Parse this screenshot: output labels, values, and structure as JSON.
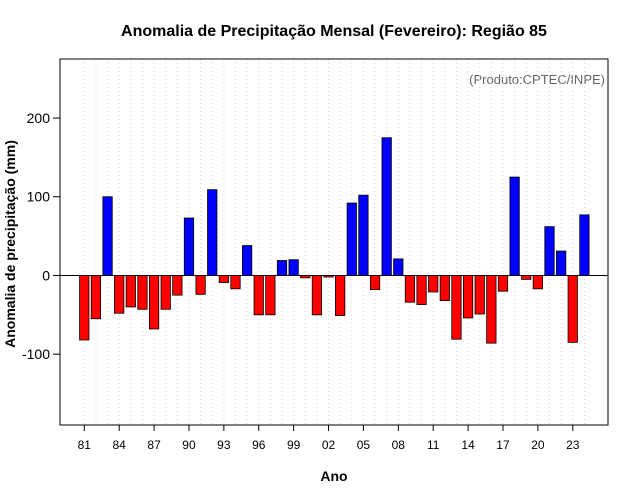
{
  "chart_data": {
    "type": "bar",
    "title": "Anomalia de Precipitação Mensal (Fevereiro): Região 85",
    "xlabel": "Ano",
    "ylabel": "Anomalia de precipitação (mm)",
    "annotation": "(Produto:CPTEC/INPE)",
    "ylim": [
      -190,
      275
    ],
    "yticks": [
      -100,
      0,
      100,
      200
    ],
    "grid": "vertical dotted",
    "x": [
      1981,
      1982,
      1983,
      1984,
      1985,
      1986,
      1987,
      1988,
      1989,
      1990,
      1991,
      1992,
      1993,
      1994,
      1995,
      1996,
      1997,
      1998,
      1999,
      2000,
      2001,
      2002,
      2003,
      2004,
      2005,
      2006,
      2007,
      2008,
      2009,
      2010,
      2011,
      2012,
      2013,
      2014,
      2015,
      2016,
      2017,
      2018,
      2019,
      2020,
      2021,
      2022,
      2023,
      2024
    ],
    "xtick_labels": [
      {
        "year": 1981,
        "label": "81"
      },
      {
        "year": 1984,
        "label": "84"
      },
      {
        "year": 1987,
        "label": "87"
      },
      {
        "year": 1990,
        "label": "90"
      },
      {
        "year": 1993,
        "label": "93"
      },
      {
        "year": 1996,
        "label": "96"
      },
      {
        "year": 1999,
        "label": "99"
      },
      {
        "year": 2002,
        "label": "02"
      },
      {
        "year": 2005,
        "label": "05"
      },
      {
        "year": 2008,
        "label": "08"
      },
      {
        "year": 2011,
        "label": "11"
      },
      {
        "year": 2014,
        "label": "14"
      },
      {
        "year": 2017,
        "label": "17"
      },
      {
        "year": 2020,
        "label": "20"
      },
      {
        "year": 2023,
        "label": "23"
      }
    ],
    "values": [
      -82,
      -55,
      100,
      -48,
      -40,
      -43,
      -68,
      -43,
      -25,
      73,
      -24,
      109,
      -9,
      -17,
      38,
      -50,
      -50,
      19,
      20,
      -3,
      -50,
      -2,
      -51,
      92,
      102,
      -18,
      175,
      21,
      -34,
      -37,
      -21,
      -32,
      -81,
      -54,
      -49,
      -86,
      -20,
      125,
      -5,
      -17,
      62,
      31,
      -85,
      77
    ],
    "colors": {
      "positive": "#0000ff",
      "negative": "#ff0000",
      "zero_line": "#000000"
    }
  }
}
